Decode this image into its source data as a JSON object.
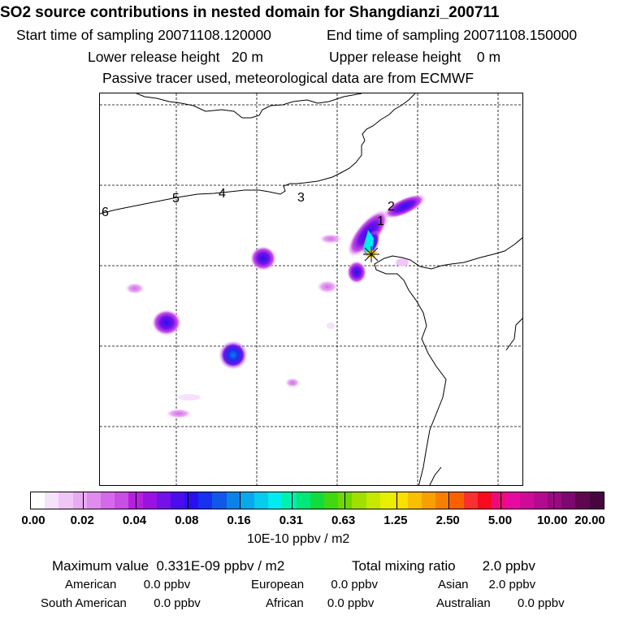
{
  "header": {
    "title": "SO2 source contributions in nested domain for Shangdianzi_200711",
    "start_label": "Start time of sampling 20071108.120000",
    "end_label": "End time of sampling 20071108.150000",
    "lower_label": "Lower release height   20 m",
    "upper_label": "Upper release height    0 m",
    "tracer_note": "Passive tracer used, meteorological data are from ECMWF"
  },
  "map": {
    "region_labels": [
      "6",
      "5",
      "4",
      "3",
      "2",
      "1"
    ],
    "plumes": [
      {
        "label": "main plume near site",
        "lon_frac": 0.64,
        "lat_frac": 0.38,
        "level": 0.16
      },
      {
        "label": "northeast plume",
        "lon_frac": 0.74,
        "lat_frac": 0.29,
        "level": 0.04
      }
    ]
  },
  "colorbar": {
    "colors": [
      "#ffffff",
      "#f6e2fa",
      "#efc6f6",
      "#e8aaf2",
      "#df8cee",
      "#d46ae9",
      "#c84ee6",
      "#b61fe0",
      "#9a12e2",
      "#7410e8",
      "#4c0cee",
      "#2a10f0",
      "#1830f0",
      "#1058e8",
      "#0a82e8",
      "#08a8ec",
      "#06ccf0",
      "#00ecf0",
      "#00f0b0",
      "#00e878",
      "#10dc40",
      "#40d810",
      "#70d800",
      "#a0e000",
      "#c8e800",
      "#e8f000",
      "#f8e000",
      "#f8c000",
      "#f8a000",
      "#f88000",
      "#f86000",
      "#f83030",
      "#f80a20",
      "#f00a78",
      "#e80aa0",
      "#d00a98",
      "#b40a90",
      "#980a80",
      "#7c0870",
      "#600650",
      "#480640"
    ],
    "tick_labels": [
      "0.00",
      "0.02",
      "0.04",
      "0.08",
      "0.16",
      "0.31",
      "0.63",
      "1.25",
      "2.50",
      "5.00",
      "10.00",
      "20.00"
    ],
    "unit": "10E-10 ppbv / m2"
  },
  "summary": {
    "max_value": "Maximum value  0.331E-09 ppbv / m2",
    "total_mixing": "Total mixing ratio       2.0 ppbv",
    "american": "American        0.0 ppbv",
    "european": "European        0.0 ppbv",
    "asian": "Asian      2.0 ppbv",
    "south_american": "South American        0.0 ppbv",
    "african": "African       0.0 ppbv",
    "australian": "Australian        0.0 ppbv"
  }
}
